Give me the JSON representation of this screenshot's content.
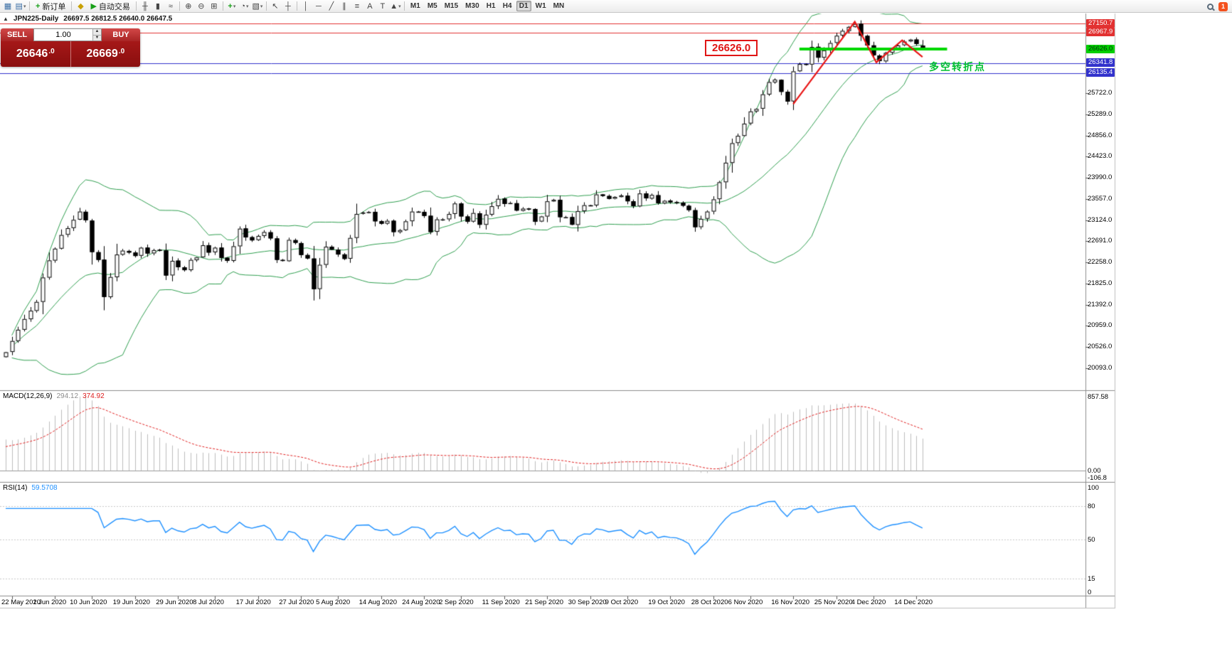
{
  "toolbar": {
    "items": [
      {
        "type": "icon",
        "name": "new-chart-icon",
        "glyph": "▦",
        "color": "#3a6ea5"
      },
      {
        "type": "icon",
        "name": "profiles-icon",
        "glyph": "▤",
        "color": "#3a6ea5",
        "caret": true
      },
      {
        "type": "sep"
      },
      {
        "type": "button",
        "name": "new-order-button",
        "glyph": "+",
        "glyph_color": "#18a018",
        "label": "新订单"
      },
      {
        "type": "sep"
      },
      {
        "type": "icon",
        "name": "expert-advisors-icon",
        "glyph": "◆",
        "color": "#c8a000"
      },
      {
        "type": "button",
        "name": "auto-trading-button",
        "glyph": "▶",
        "glyph_color": "#18a018",
        "label": "自动交易"
      },
      {
        "type": "sep"
      },
      {
        "type": "icon",
        "name": "bar-chart-icon",
        "glyph": "╫",
        "color": "#444"
      },
      {
        "type": "icon",
        "name": "candlestick-chart-icon",
        "glyph": "▮",
        "color": "#444"
      },
      {
        "type": "icon",
        "name": "line-chart-icon",
        "glyph": "≈",
        "color": "#444"
      },
      {
        "type": "sep"
      },
      {
        "type": "icon",
        "name": "zoom-in-icon",
        "glyph": "⊕",
        "color": "#444"
      },
      {
        "type": "icon",
        "name": "zoom-out-icon",
        "glyph": "⊖",
        "color": "#444"
      },
      {
        "type": "icon",
        "name": "tile-windows-icon",
        "glyph": "⊞",
        "color": "#444"
      },
      {
        "type": "sep"
      },
      {
        "type": "icon",
        "name": "indicators-icon",
        "glyph": "+",
        "color": "#18a018",
        "caret": true
      },
      {
        "type": "icon",
        "name": "periods-icon",
        "glyph": "◔",
        "color": "#444",
        "caret": true
      },
      {
        "type": "icon",
        "name": "templates-icon",
        "glyph": "▧",
        "color": "#444",
        "caret": true
      },
      {
        "type": "sep"
      },
      {
        "type": "icon",
        "name": "cursor-icon",
        "glyph": "↖",
        "color": "#444"
      },
      {
        "type": "icon",
        "name": "crosshair-icon",
        "glyph": "┼",
        "color": "#444"
      },
      {
        "type": "sep"
      },
      {
        "type": "icon",
        "name": "vertical-line-icon",
        "glyph": "│",
        "color": "#444"
      },
      {
        "type": "icon",
        "name": "horizontal-line-icon",
        "glyph": "─",
        "color": "#444"
      },
      {
        "type": "icon",
        "name": "trendline-icon",
        "glyph": "╱",
        "color": "#444"
      },
      {
        "type": "icon",
        "name": "equidistant-channel-icon",
        "glyph": "∥",
        "color": "#444"
      },
      {
        "type": "icon",
        "name": "fibonacci-icon",
        "glyph": "≡",
        "color": "#444"
      },
      {
        "type": "icon",
        "name": "text-tool-icon",
        "glyph": "A",
        "color": "#444"
      },
      {
        "type": "icon",
        "name": "text-label-icon",
        "glyph": "T",
        "color": "#444"
      },
      {
        "type": "icon",
        "name": "arrows-tool-icon",
        "glyph": "▲",
        "color": "#444",
        "caret": true
      },
      {
        "type": "sep"
      }
    ],
    "timeframes": [
      "M1",
      "M5",
      "M15",
      "M30",
      "H1",
      "H4",
      "D1",
      "W1",
      "MN"
    ],
    "active_timeframe": "D1",
    "notification_badge": "1"
  },
  "chart_header": {
    "collapse_icon": "▲",
    "symbol": "JPN225-Daily",
    "ohlc": "26697.5 26812.5 26640.0 26647.5"
  },
  "trade_panel": {
    "sell_label": "SELL",
    "buy_label": "BUY",
    "volume": "1.00",
    "sell_price": "26646.0",
    "buy_price": "26669.0"
  },
  "macd_panel": {
    "title": "MACD(12,26,9)",
    "value_main": "294.12",
    "value_signal": "374.92",
    "axis_values": [
      857.58,
      0,
      -106.8
    ],
    "axis_labels": [
      "857.58",
      "0.00",
      "-106.8"
    ]
  },
  "rsi_panel": {
    "title": "RSI(14)",
    "value": "59.5708",
    "axis_values": [
      100,
      80,
      50,
      15,
      0
    ],
    "axis_labels": [
      "100",
      "80",
      "50",
      "15",
      "0"
    ],
    "level_lines": [
      80,
      50,
      15
    ]
  },
  "chart_data": {
    "type": "candlestick",
    "symbol": "JPN225",
    "timeframe": "Daily",
    "last_bar_ohlc": {
      "open": 26697.5,
      "high": 26812.5,
      "low": 26640.0,
      "close": 26647.5
    },
    "closes": [
      20420,
      20650,
      20880,
      21100,
      21270,
      21450,
      21950,
      22300,
      22540,
      22820,
      22960,
      23130,
      23300,
      23120,
      22470,
      22310,
      21550,
      21960,
      22420,
      22500,
      22460,
      22390,
      22560,
      22440,
      22510,
      22510,
      21990,
      22290,
      22160,
      22100,
      22310,
      22360,
      22610,
      22460,
      22560,
      22350,
      22290,
      22590,
      22950,
      22770,
      22710,
      22800,
      22880,
      22750,
      22310,
      22290,
      22720,
      22660,
      22410,
      22340,
      21710,
      22210,
      22580,
      22520,
      22420,
      22330,
      22760,
      23250,
      23280,
      23290,
      23100,
      23050,
      23110,
      22880,
      22920,
      23100,
      23300,
      23290,
      23210,
      22880,
      23140,
      23140,
      23250,
      23465,
      23200,
      23090,
      23270,
      23030,
      23235,
      23410,
      23560,
      23455,
      23475,
      23320,
      23360,
      23350,
      23090,
      23200,
      23510,
      23540,
      23185,
      23185,
      23030,
      23310,
      23430,
      23420,
      23650,
      23620,
      23560,
      23600,
      23630,
      23510,
      23410,
      23670,
      23570,
      23640,
      23470,
      23520,
      23490,
      23480,
      23420,
      23330,
      22980,
      23150,
      23300,
      23550,
      23900,
      24300,
      24700,
      24850,
      25100,
      25350,
      25400,
      25700,
      25950,
      26000,
      25750,
      25550,
      26170,
      26320,
      26310,
      26670,
      26450,
      26600,
      26750,
      26900,
      27000,
      27080,
      27140,
      26900,
      26700,
      26500,
      26380,
      26550,
      26650,
      26700,
      26780,
      26820,
      26730,
      26647.5
    ],
    "x_tick_bars": [
      1,
      8,
      14,
      21,
      28,
      34,
      41,
      48,
      54,
      61,
      68,
      74,
      81,
      88,
      95,
      101,
      108,
      115,
      121,
      128,
      135,
      141,
      148
    ],
    "x_tick_labels": [
      "22 May 2020",
      "1 Jun 2020",
      "10 Jun 2020",
      "19 Jun 2020",
      "29 Jun 2020",
      "8 Jul 2020",
      "17 Jul 2020",
      "27 Jul 2020",
      "5 Aug 2020",
      "14 Aug 2020",
      "24 Aug 2020",
      "2 Sep 2020",
      "11 Sep 2020",
      "21 Sep 2020",
      "30 Sep 2020",
      "9 Oct 2020",
      "19 Oct 2020",
      "28 Oct 2020",
      "6 Nov 2020",
      "16 Nov 2020",
      "25 Nov 2020",
      "4 Dec 2020",
      "14 Dec 2020"
    ],
    "y_axis": {
      "gridline_values": [
        25722.0,
        25289.0,
        24856.0,
        24423.0,
        23990.0,
        23557.0,
        23124.0,
        22691.0,
        22258.0,
        21825.0,
        21392.0,
        20959.0,
        20526.0,
        20093.0
      ],
      "special_labels": [
        {
          "value": 27150.7,
          "bg": "#e23131",
          "fg": "#ffffff"
        },
        {
          "value": 26967.9,
          "bg": "#e23131",
          "fg": "#ffffff"
        },
        {
          "value": 26626.0,
          "bg": "#00cf00",
          "fg": "#00320a"
        },
        {
          "value": 26341.8,
          "bg": "#3232cc",
          "fg": "#ffffff"
        },
        {
          "value": 26135.4,
          "bg": "#3232cc",
          "fg": "#ffffff"
        }
      ]
    },
    "colors": {
      "background": "#ffffff",
      "candle_up": "#ffffff",
      "candle_down": "#000000",
      "candle_outline": "#000000",
      "bollinger": "#2f9e4f",
      "macd_histogram": "#bdbdbd",
      "macd_signal": "#e02020",
      "rsi_line": "#1e90ff"
    },
    "indicators": {
      "bollinger_bands": {
        "period": 20,
        "deviation": 2
      },
      "macd": {
        "fast": 12,
        "slow": 26,
        "signal": 9,
        "current_macd": 294.12,
        "current_signal": 374.92
      },
      "rsi": {
        "period": 14,
        "current": 59.5708
      }
    },
    "annotations": {
      "hlines": [
        {
          "price": 27150.7,
          "color": "#e23131"
        },
        {
          "price": 26967.9,
          "color": "#e23131"
        },
        {
          "price": 26341.8,
          "color": "#3232cc"
        },
        {
          "price": 26135.4,
          "color": "#3232cc"
        }
      ],
      "thick_green_line": {
        "price": 26626.0,
        "bar_start": 129,
        "bar_end": 153,
        "color": "#00d800"
      },
      "price_label_box": {
        "text": "26626.0",
        "color": "#e01515"
      },
      "zigzag": {
        "color": "#e81515",
        "points": [
          [
            128,
            25500
          ],
          [
            138,
            27185
          ],
          [
            141.5,
            26355
          ],
          [
            145.7,
            26805
          ],
          [
            149,
            26465
          ]
        ]
      },
      "turning_point_text": {
        "text": "多空转折点",
        "color": "#00c030"
      }
    }
  }
}
